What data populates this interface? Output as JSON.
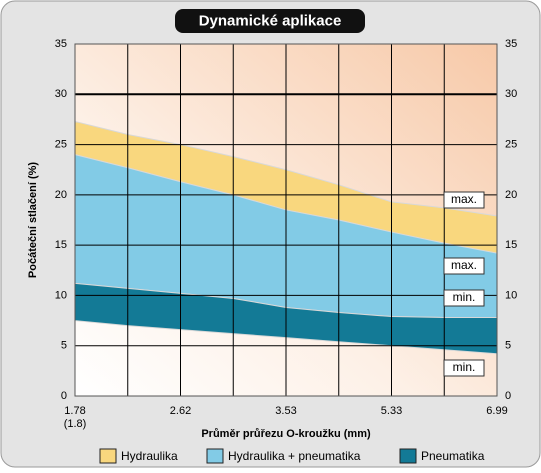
{
  "chart_data": {
    "type": "range_area",
    "title": "Dynamické aplikace",
    "x_label": "Průměr průřezu O-kroužku (mm)",
    "y_label": "Počáteční stlačení (%)",
    "categories": [
      "1.78",
      null,
      "2.62",
      null,
      "3.53",
      null,
      "5.33",
      null,
      "6.99"
    ],
    "x_sublabel": "(1.8)",
    "ylim": [
      0,
      35
    ],
    "yticks": [
      0,
      5,
      10,
      15,
      20,
      25,
      30,
      35
    ],
    "grid": true,
    "series": [
      {
        "name": "Hydraulika",
        "color": "#f9d77e",
        "low": [
          24,
          22.7,
          21.3,
          20,
          18.5,
          17.5,
          16.3,
          15.2,
          14.2
        ],
        "high": [
          27.3,
          26,
          25,
          23.8,
          22.5,
          21,
          19.3,
          18.7,
          17.9
        ]
      },
      {
        "name": "Hydraulika + pneumatika",
        "color": "#82cbe6",
        "low": [
          11.2,
          10.7,
          10.2,
          9.7,
          8.8,
          8.3,
          7.9,
          7.8,
          7.8
        ],
        "high": [
          24,
          22.7,
          21.3,
          20,
          18.5,
          17.5,
          16.3,
          15.2,
          14.2
        ]
      },
      {
        "name": "Pneumatika",
        "color": "#137a96",
        "low": [
          7.5,
          7,
          6.6,
          6.2,
          5.8,
          5.4,
          5,
          4.6,
          4.2
        ],
        "high": [
          11.2,
          10.7,
          10.2,
          9.7,
          8.8,
          8.3,
          7.9,
          7.8,
          7.8
        ]
      }
    ],
    "annotations": [
      "max.",
      "max.",
      "min.",
      "min."
    ]
  }
}
